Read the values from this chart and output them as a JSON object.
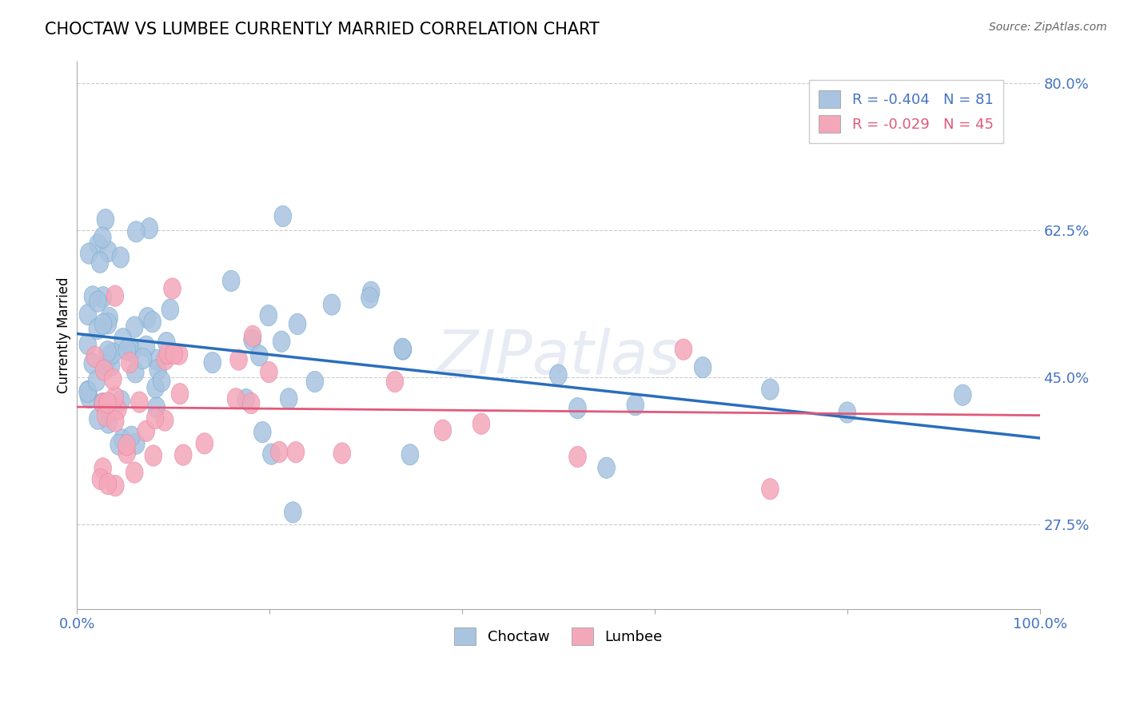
{
  "title": "CHOCTAW VS LUMBEE CURRENTLY MARRIED CORRELATION CHART",
  "source": "Source: ZipAtlas.com",
  "ylabel": "Currently Married",
  "xlim": [
    0.0,
    1.0
  ],
  "ylim": [
    0.175,
    0.825
  ],
  "yticks": [
    0.275,
    0.45,
    0.625,
    0.8
  ],
  "ytick_labels": [
    "27.5%",
    "45.0%",
    "62.5%",
    "80.0%"
  ],
  "choctaw_R": -0.404,
  "choctaw_N": 81,
  "lumbee_R": -0.029,
  "lumbee_N": 45,
  "choctaw_color": "#a8c4e0",
  "lumbee_color": "#f4a7b9",
  "choctaw_line_color": "#2a6ebb",
  "lumbee_line_color": "#e05a7a",
  "background_color": "#ffffff",
  "watermark": "ZIPAtlas",
  "choctaw_line_y0": 0.502,
  "choctaw_line_y1": 0.378,
  "lumbee_line_y0": 0.415,
  "lumbee_line_y1": 0.405
}
